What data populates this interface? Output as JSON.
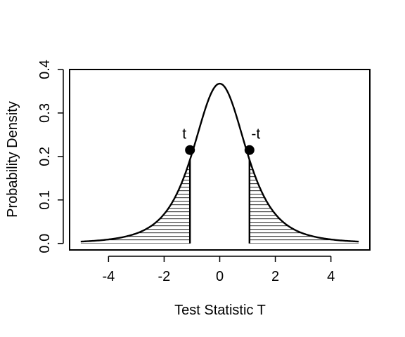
{
  "chart_data": {
    "type": "line",
    "title": "",
    "xlabel": "Test Statistic T",
    "ylabel": "Probability Density",
    "xlim": [
      -5.4,
      5.4
    ],
    "ylim": [
      -0.015,
      0.4
    ],
    "xticks": [
      -4,
      -2,
      0,
      2,
      4
    ],
    "xtick_labels": [
      "-4",
      "-2",
      "0",
      "2",
      "4"
    ],
    "yticks": [
      0.0,
      0.1,
      0.2,
      0.3,
      0.4
    ],
    "ytick_labels": [
      "0.0",
      "0.1",
      "0.2",
      "0.3",
      "0.4"
    ],
    "grid": false,
    "series": [
      {
        "x_range": [
          -5,
          5
        ],
        "distribution": "t",
        "df": 3,
        "color": "#000000"
      }
    ],
    "shaded_tails": {
      "lower_upto": -1.07,
      "upper_from": 1.07,
      "pattern": "horizontal-hatch"
    },
    "annotations": [
      {
        "text": "t",
        "x": -1.07,
        "y": 0.2148
      },
      {
        "text": "-t",
        "x": 1.07,
        "y": 0.2148
      }
    ]
  }
}
